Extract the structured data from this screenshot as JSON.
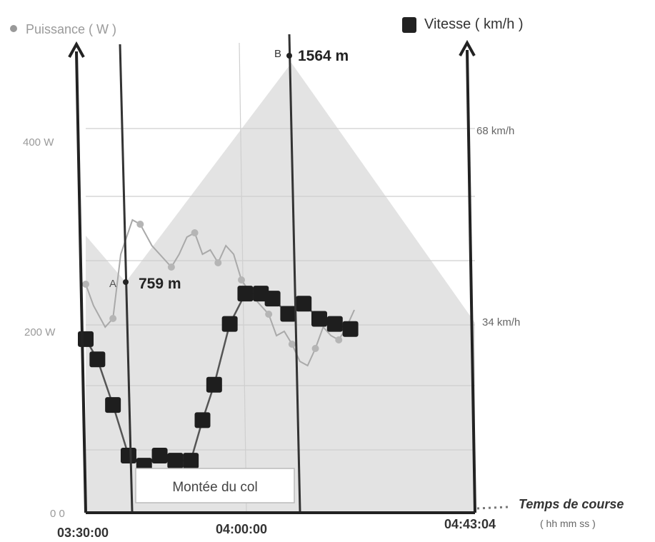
{
  "chart_data": {
    "type": "line",
    "legend": {
      "power": "Puissance ( W )",
      "speed": "Vitesse ( km/h )"
    },
    "y_left_ticks": [
      "0 0",
      "200 W",
      "400 W"
    ],
    "y_right_ticks": [
      "34 km/h",
      "68 km/h"
    ],
    "x_ticks": [
      "03:30:00",
      "04:00:00",
      "04:43:04"
    ],
    "x_axis_title": "Temps de course",
    "x_axis_unit": "( hh mm ss )",
    "annotations": {
      "point_a_letter": "A",
      "point_a_elevation": "759 m",
      "point_b_letter": "B",
      "point_b_elevation": "1564 m",
      "segment_label": "Montée du col"
    },
    "elevation_profile": {
      "unit": "m",
      "points": [
        [
          0,
          660
        ],
        [
          0.07,
          759
        ],
        [
          0.32,
          1564
        ],
        [
          0.61,
          1130
        ]
      ]
    },
    "power_series": {
      "name": "Puissance ( W )",
      "unit": "W",
      "y_range": [
        0,
        520
      ],
      "values": [
        [
          0.0,
          265
        ],
        [
          0.02,
          240
        ],
        [
          0.05,
          215
        ],
        [
          0.07,
          225
        ],
        [
          0.09,
          300
        ],
        [
          0.12,
          340
        ],
        [
          0.14,
          335
        ],
        [
          0.17,
          310
        ],
        [
          0.19,
          300
        ],
        [
          0.22,
          285
        ],
        [
          0.24,
          300
        ],
        [
          0.26,
          320
        ],
        [
          0.28,
          325
        ],
        [
          0.3,
          300
        ],
        [
          0.32,
          305
        ],
        [
          0.34,
          290
        ],
        [
          0.36,
          310
        ],
        [
          0.38,
          300
        ],
        [
          0.4,
          270
        ],
        [
          0.43,
          250
        ],
        [
          0.45,
          240
        ],
        [
          0.47,
          230
        ],
        [
          0.49,
          205
        ],
        [
          0.51,
          210
        ],
        [
          0.53,
          195
        ],
        [
          0.55,
          175
        ],
        [
          0.57,
          170
        ],
        [
          0.59,
          190
        ],
        [
          0.61,
          215
        ],
        [
          0.63,
          205
        ],
        [
          0.65,
          200
        ],
        [
          0.67,
          215
        ],
        [
          0.69,
          235
        ]
      ]
    },
    "speed_series": {
      "name": "Vitesse ( km/h )",
      "unit": "km/h",
      "y_range": [
        0,
        88
      ],
      "values": [
        [
          0.0,
          34
        ],
        [
          0.03,
          30
        ],
        [
          0.07,
          21
        ],
        [
          0.11,
          11
        ],
        [
          0.15,
          9
        ],
        [
          0.19,
          11
        ],
        [
          0.23,
          10
        ],
        [
          0.27,
          10
        ],
        [
          0.3,
          18
        ],
        [
          0.33,
          25
        ],
        [
          0.37,
          37
        ],
        [
          0.41,
          43
        ],
        [
          0.45,
          43
        ],
        [
          0.48,
          42
        ],
        [
          0.52,
          39
        ],
        [
          0.56,
          41
        ],
        [
          0.6,
          38
        ],
        [
          0.64,
          37
        ],
        [
          0.68,
          36
        ]
      ]
    }
  }
}
